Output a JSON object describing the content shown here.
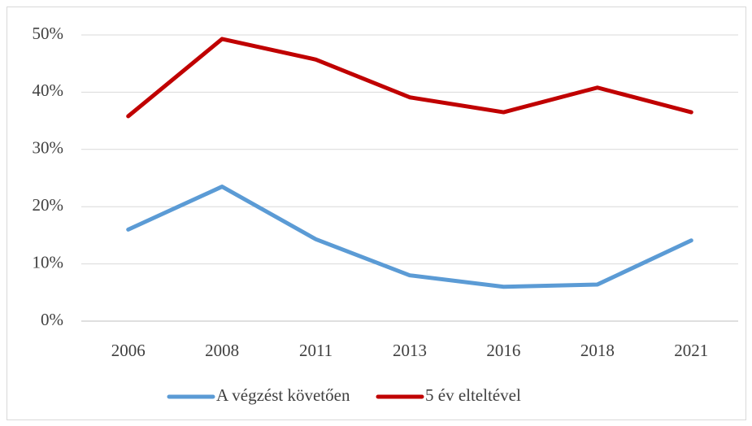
{
  "chart_data": {
    "type": "line",
    "categories": [
      "2006",
      "2008",
      "2011",
      "2013",
      "2016",
      "2018",
      "2021"
    ],
    "series": [
      {
        "name": "A végzést követően",
        "color": "#5b9bd5",
        "values": [
          16,
          23.5,
          14.3,
          8,
          6,
          6.4,
          14.1
        ]
      },
      {
        "name": "5 év elteltével",
        "color": "#c00000",
        "values": [
          35.8,
          49.3,
          45.7,
          39.1,
          36.5,
          40.8,
          36.5
        ]
      }
    ],
    "ylim": [
      0,
      50
    ],
    "yticks": [
      {
        "value": 0,
        "label": "0%"
      },
      {
        "value": 10,
        "label": "10%"
      },
      {
        "value": 20,
        "label": "20%"
      },
      {
        "value": 30,
        "label": "30%"
      },
      {
        "value": 40,
        "label": "40%"
      },
      {
        "value": 50,
        "label": "50%"
      }
    ],
    "grid": true,
    "legend": "bottom"
  }
}
